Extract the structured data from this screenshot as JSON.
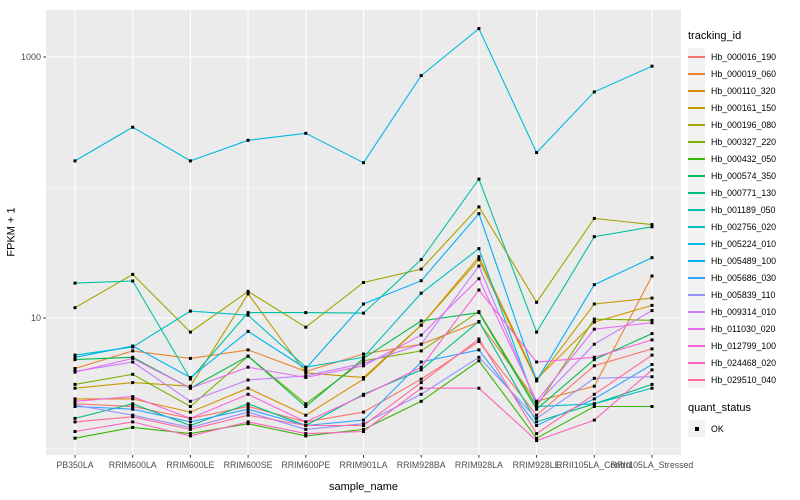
{
  "figure": {
    "panel_bg": "#EBEBEB",
    "grid_color": "#FFFFFF",
    "tick_color": "#333333",
    "tick_label_color": "#4D4D4D",
    "legend_key_bg": "#F2F2F2",
    "point_color": "#000000"
  },
  "chart_data": {
    "type": "line",
    "xlabel": "sample_name",
    "ylabel": "FPKM + 1",
    "y_scale": "log10",
    "y_ticks": [
      1000,
      10
    ],
    "y_minor_gridlines": [
      100,
      1
    ],
    "ylim": [
      0.85,
      2300
    ],
    "grid": true,
    "legend_position": "right",
    "legend_title": "tracking_id",
    "categories": [
      "PB350LA",
      "RRIM600LA",
      "RRIM600LE",
      "RRIM600SE",
      "RRIM600PE",
      "RRIM901LA",
      "RRIM928BA",
      "RRIM928LA",
      "RRIM928LE",
      "RRII105LA_Control",
      "RRII105LA_Stressed"
    ],
    "series": [
      {
        "name": "Hb_000016_190",
        "color": "#F8766D",
        "values": [
          2.2,
          2.1,
          1.7,
          2.1,
          1.6,
          1.9,
          3.4,
          6.6,
          1.8,
          4.3,
          5.8
        ]
      },
      {
        "name": "Hb_000019_060",
        "color": "#EA8331",
        "values": [
          4.1,
          5.6,
          4.9,
          5.7,
          3.9,
          5.3,
          6.3,
          9.3,
          2.3,
          3.0,
          21
        ]
      },
      {
        "name": "Hb_000110_320",
        "color": "#D89000",
        "values": [
          2.4,
          2.4,
          1.9,
          2.9,
          1.8,
          3.4,
          8.8,
          29.5,
          3.4,
          9.3,
          12.5
        ]
      },
      {
        "name": "Hb_000161_150",
        "color": "#C09B00",
        "values": [
          2.9,
          3.2,
          3.0,
          15.3,
          3.8,
          3.5,
          8.8,
          28,
          3.3,
          12.8,
          14.2
        ]
      },
      {
        "name": "Hb_000196_080",
        "color": "#A3A500",
        "values": [
          12,
          21.6,
          7.8,
          16,
          8.5,
          18.7,
          23.7,
          71,
          13.2,
          58,
          52
        ]
      },
      {
        "name": "Hb_000327_220",
        "color": "#7CAE00",
        "values": [
          3.1,
          3.7,
          2.1,
          5.1,
          2.2,
          4.7,
          5.6,
          11.2,
          2.1,
          9.8,
          9.6
        ]
      },
      {
        "name": "Hb_000432_050",
        "color": "#39B600",
        "values": [
          1.2,
          1.45,
          1.3,
          1.55,
          1.25,
          1.4,
          2.3,
          4.7,
          1.2,
          2.1,
          2.1
        ]
      },
      {
        "name": "Hb_000574_350",
        "color": "#00BB4E",
        "values": [
          4.8,
          5.0,
          2.9,
          5.1,
          2.1,
          4.9,
          9.5,
          11.0,
          2.0,
          4.8,
          7.6
        ]
      },
      {
        "name": "Hb_000771_130",
        "color": "#00BF7D",
        "values": [
          1.7,
          2.2,
          1.5,
          2.2,
          1.5,
          2.6,
          4.0,
          9.4,
          1.6,
          2.2,
          3.1
        ]
      },
      {
        "name": "Hb_001189_050",
        "color": "#00C1A3",
        "values": [
          18.5,
          19.2,
          3.4,
          11.0,
          11.0,
          10.9,
          28,
          116,
          7.8,
          42,
          50
        ]
      },
      {
        "name": "Hb_002756_020",
        "color": "#00BFC4",
        "values": [
          5.2,
          6.0,
          11.3,
          10.5,
          4.2,
          5.0,
          15.5,
          34,
          2.1,
          2.2,
          2.9
        ]
      },
      {
        "name": "Hb_005224_010",
        "color": "#00BAE0",
        "values": [
          160,
          290,
          160,
          230,
          260,
          155,
          720,
          1650,
          185,
          540,
          850
        ]
      },
      {
        "name": "Hb_005489_100",
        "color": "#00B0F6",
        "values": [
          5.0,
          6.1,
          3.5,
          7.9,
          4.1,
          12.8,
          19.3,
          63,
          3.3,
          18,
          29
        ]
      },
      {
        "name": "Hb_005686_030",
        "color": "#35A2FF",
        "values": [
          2.1,
          2.0,
          1.6,
          2.0,
          1.5,
          1.65,
          4.6,
          5.7,
          1.5,
          2.4,
          4.4
        ]
      },
      {
        "name": "Hb_005839_110",
        "color": "#9590FF",
        "values": [
          2.15,
          1.8,
          1.45,
          1.9,
          1.4,
          1.55,
          2.6,
          5.0,
          1.7,
          3.45,
          3.55
        ]
      },
      {
        "name": "Hb_009314_010",
        "color": "#C77CFF",
        "values": [
          3.9,
          4.6,
          2.3,
          3.35,
          3.6,
          4.5,
          6.3,
          25,
          2.2,
          6.3,
          11.4
        ]
      },
      {
        "name": "Hb_011030_020",
        "color": "#E76BF3",
        "values": [
          3.85,
          4.9,
          2.9,
          4.2,
          3.5,
          4.3,
          7.4,
          20,
          2.3,
          8.2,
          9.2
        ]
      },
      {
        "name": "Hb_012799_100",
        "color": "#FA62DB",
        "values": [
          2.3,
          2.5,
          1.7,
          2.6,
          1.6,
          2.55,
          4.2,
          16.4,
          4.6,
          5.0,
          6.8
        ]
      },
      {
        "name": "Hb_024468_020",
        "color": "#FF62BC",
        "values": [
          1.35,
          1.6,
          1.25,
          1.6,
          1.3,
          1.35,
          2.9,
          2.9,
          1.15,
          1.65,
          4.0
        ]
      },
      {
        "name": "Hb_029510_040",
        "color": "#FF6A98",
        "values": [
          1.6,
          1.75,
          1.4,
          1.8,
          1.5,
          1.5,
          3.2,
          6.9,
          1.3,
          2.6,
          5.2
        ]
      }
    ],
    "quant_status": {
      "title": "quant_status",
      "items": [
        {
          "label": "OK"
        }
      ]
    }
  }
}
